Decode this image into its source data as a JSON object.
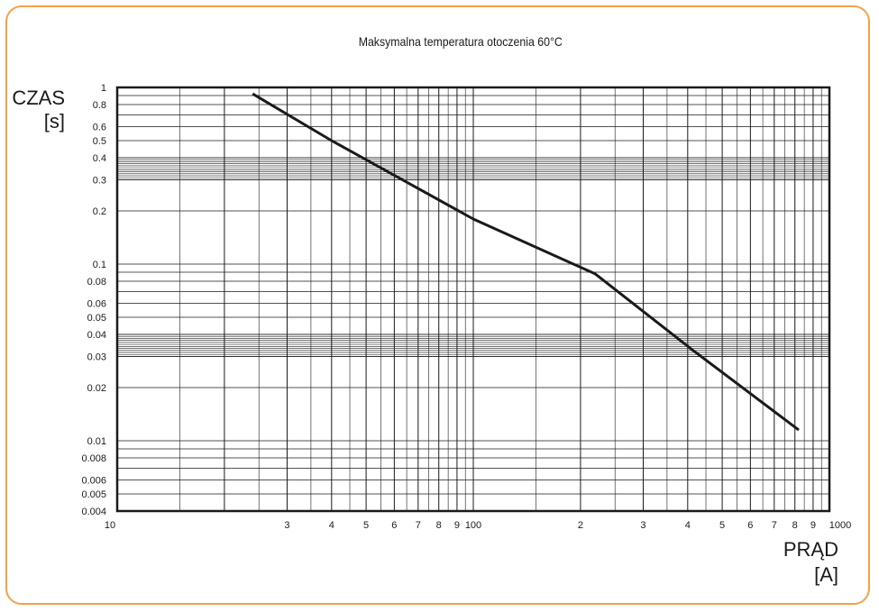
{
  "chart_data": {
    "type": "line",
    "title": "Maksymalna temperatura otoczenia 60°C",
    "ylabel": [
      "CZAS",
      "[s]"
    ],
    "xlabel": [
      "PRĄD",
      "[A]"
    ],
    "xscale": "log",
    "yscale": "log",
    "xlim": [
      10,
      1000
    ],
    "ylim": [
      0.004,
      1
    ],
    "grid": true,
    "x_ticks": [
      {
        "value": 10,
        "label": "10"
      },
      {
        "value": 30,
        "label": "3"
      },
      {
        "value": 40,
        "label": "4"
      },
      {
        "value": 50,
        "label": "5"
      },
      {
        "value": 60,
        "label": "6"
      },
      {
        "value": 70,
        "label": "7"
      },
      {
        "value": 80,
        "label": "8"
      },
      {
        "value": 90,
        "label": "9"
      },
      {
        "value": 100,
        "label": "100"
      },
      {
        "value": 200,
        "label": "2"
      },
      {
        "value": 300,
        "label": "3"
      },
      {
        "value": 400,
        "label": "4"
      },
      {
        "value": 500,
        "label": "5"
      },
      {
        "value": 600,
        "label": "6"
      },
      {
        "value": 700,
        "label": "7"
      },
      {
        "value": 800,
        "label": "8"
      },
      {
        "value": 900,
        "label": "9"
      },
      {
        "value": 1000,
        "label": "1000"
      }
    ],
    "y_ticks": [
      {
        "value": 1,
        "label": "1"
      },
      {
        "value": 0.8,
        "label": "0.8"
      },
      {
        "value": 0.6,
        "label": "0.6"
      },
      {
        "value": 0.5,
        "label": "0.5"
      },
      {
        "value": 0.4,
        "label": "0.4"
      },
      {
        "value": 0.3,
        "label": "0.3"
      },
      {
        "value": 0.2,
        "label": "0.2"
      },
      {
        "value": 0.1,
        "label": "0.1"
      },
      {
        "value": 0.08,
        "label": "0.08"
      },
      {
        "value": 0.06,
        "label": "0.06"
      },
      {
        "value": 0.05,
        "label": "0.05"
      },
      {
        "value": 0.04,
        "label": "0.04"
      },
      {
        "value": 0.03,
        "label": "0.03"
      },
      {
        "value": 0.02,
        "label": "0.02"
      },
      {
        "value": 0.01,
        "label": "0.01"
      },
      {
        "value": 0.008,
        "label": "0.008"
      },
      {
        "value": 0.006,
        "label": "0.006"
      },
      {
        "value": 0.005,
        "label": "0.005"
      },
      {
        "value": 0.004,
        "label": "0.004"
      }
    ],
    "series": [
      {
        "x": [
          24,
          40,
          100,
          220,
          410,
          820
        ],
        "y": [
          0.92,
          0.5,
          0.18,
          0.088,
          0.033,
          0.0115
        ]
      }
    ]
  },
  "colors": {
    "frame_border": "#f5a14a",
    "curve": "#1a1a1a",
    "grid": "#1a1a1a"
  }
}
